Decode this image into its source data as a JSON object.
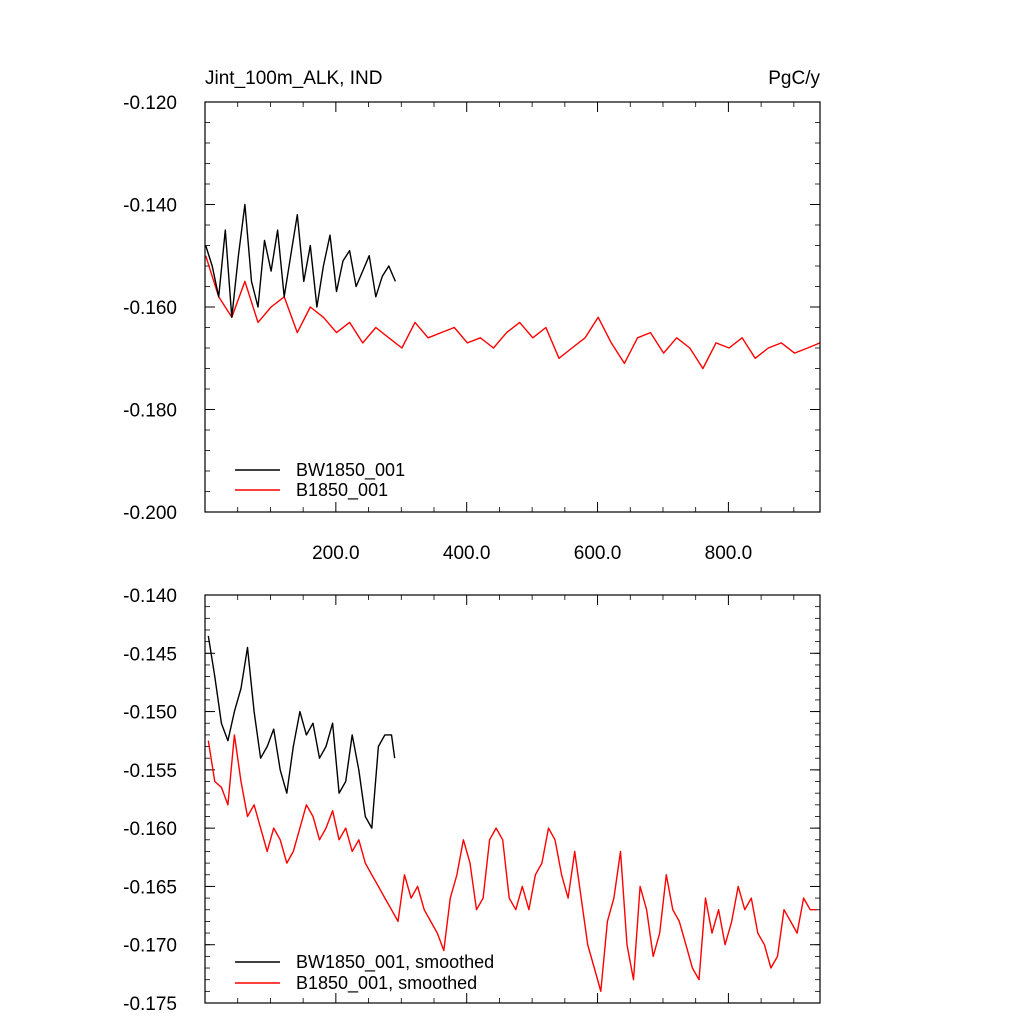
{
  "colors": {
    "series_a": "#000000",
    "series_b": "#ff0000",
    "axis": "#000000",
    "background": "#ffffff"
  },
  "chart_data": [
    {
      "type": "line",
      "title": "Jint_100m_ALK, IND",
      "units": "PgC/y",
      "xlabel": "",
      "ylabel": "",
      "xlim": [
        0,
        940
      ],
      "ylim": [
        -0.2,
        -0.12
      ],
      "yticks": [
        -0.2,
        -0.18,
        -0.16,
        -0.14,
        -0.12
      ],
      "ytick_labels": [
        "-0.200",
        "-0.180",
        "-0.160",
        "-0.140",
        "-0.120"
      ],
      "xticks": [
        200,
        400,
        600,
        800
      ],
      "xtick_labels": [
        "200.0",
        "400.0",
        "600.0",
        "800.0"
      ],
      "legend_position": "bottom-left",
      "series": [
        {
          "name": "BW1850_001",
          "color": "#000000",
          "x": [
            1,
            11,
            21,
            31,
            41,
            51,
            61,
            71,
            81,
            91,
            101,
            111,
            121,
            131,
            141,
            151,
            161,
            171,
            181,
            191,
            201,
            211,
            221,
            231,
            241,
            251,
            261,
            271,
            281,
            291
          ],
          "values": [
            -0.148,
            -0.152,
            -0.158,
            -0.145,
            -0.162,
            -0.15,
            -0.14,
            -0.155,
            -0.16,
            -0.147,
            -0.153,
            -0.145,
            -0.158,
            -0.15,
            -0.142,
            -0.155,
            -0.148,
            -0.16,
            -0.152,
            -0.146,
            -0.157,
            -0.151,
            -0.149,
            -0.156,
            -0.153,
            -0.15,
            -0.158,
            -0.154,
            -0.152,
            -0.155
          ]
        },
        {
          "name": "B1850_001",
          "color": "#ff0000",
          "x": [
            1,
            21,
            41,
            61,
            81,
            101,
            121,
            141,
            161,
            181,
            201,
            221,
            241,
            261,
            281,
            301,
            321,
            341,
            361,
            381,
            401,
            421,
            441,
            461,
            481,
            501,
            521,
            541,
            561,
            581,
            601,
            621,
            641,
            661,
            681,
            701,
            721,
            741,
            761,
            781,
            801,
            821,
            841,
            861,
            881,
            901,
            921,
            940
          ],
          "values": [
            -0.15,
            -0.158,
            -0.162,
            -0.155,
            -0.163,
            -0.16,
            -0.158,
            -0.165,
            -0.16,
            -0.162,
            -0.165,
            -0.163,
            -0.167,
            -0.164,
            -0.166,
            -0.168,
            -0.163,
            -0.166,
            -0.165,
            -0.164,
            -0.167,
            -0.166,
            -0.168,
            -0.165,
            -0.163,
            -0.166,
            -0.164,
            -0.17,
            -0.168,
            -0.166,
            -0.162,
            -0.167,
            -0.171,
            -0.166,
            -0.165,
            -0.169,
            -0.166,
            -0.168,
            -0.172,
            -0.167,
            -0.168,
            -0.166,
            -0.17,
            -0.168,
            -0.167,
            -0.169,
            -0.168,
            -0.167
          ]
        }
      ]
    },
    {
      "type": "line",
      "title": "",
      "xlabel": "",
      "ylabel": "",
      "xlim": [
        0,
        940
      ],
      "ylim": [
        -0.175,
        -0.14
      ],
      "yticks": [
        -0.175,
        -0.17,
        -0.165,
        -0.16,
        -0.155,
        -0.15,
        -0.145,
        -0.14
      ],
      "ytick_labels": [
        "-0.175",
        "-0.170",
        "-0.165",
        "-0.160",
        "-0.155",
        "-0.150",
        "-0.145",
        "-0.140"
      ],
      "xticks": [
        200,
        400,
        600,
        800
      ],
      "xtick_labels": [],
      "legend_position": "bottom-left",
      "series": [
        {
          "name": "BW1850_001, smoothed",
          "color": "#000000",
          "x": [
            5,
            15,
            25,
            35,
            45,
            55,
            65,
            75,
            85,
            95,
            105,
            115,
            125,
            135,
            145,
            155,
            165,
            175,
            185,
            195,
            205,
            215,
            225,
            235,
            245,
            255,
            265,
            275,
            285,
            290
          ],
          "values": [
            -0.1435,
            -0.147,
            -0.151,
            -0.1525,
            -0.15,
            -0.148,
            -0.1445,
            -0.15,
            -0.154,
            -0.153,
            -0.1515,
            -0.155,
            -0.157,
            -0.153,
            -0.15,
            -0.152,
            -0.151,
            -0.154,
            -0.153,
            -0.151,
            -0.157,
            -0.156,
            -0.152,
            -0.155,
            -0.159,
            -0.16,
            -0.153,
            -0.152,
            -0.152,
            -0.154
          ]
        },
        {
          "name": "B1850_001, smoothed",
          "color": "#ff0000",
          "x": [
            5,
            15,
            25,
            35,
            45,
            55,
            65,
            75,
            85,
            95,
            105,
            115,
            125,
            135,
            145,
            155,
            165,
            175,
            185,
            195,
            205,
            215,
            225,
            235,
            245,
            255,
            265,
            275,
            285,
            295,
            305,
            315,
            325,
            335,
            345,
            355,
            365,
            375,
            385,
            395,
            405,
            415,
            425,
            435,
            445,
            455,
            465,
            475,
            485,
            495,
            505,
            515,
            525,
            535,
            545,
            555,
            565,
            575,
            585,
            595,
            605,
            615,
            625,
            635,
            645,
            655,
            665,
            675,
            685,
            695,
            705,
            715,
            725,
            735,
            745,
            755,
            765,
            775,
            785,
            795,
            805,
            815,
            825,
            835,
            845,
            855,
            865,
            875,
            885,
            895,
            905,
            915,
            925,
            935
          ],
          "values": [
            -0.1525,
            -0.156,
            -0.1565,
            -0.158,
            -0.152,
            -0.156,
            -0.159,
            -0.158,
            -0.16,
            -0.162,
            -0.16,
            -0.161,
            -0.163,
            -0.162,
            -0.16,
            -0.158,
            -0.159,
            -0.161,
            -0.16,
            -0.1585,
            -0.161,
            -0.16,
            -0.162,
            -0.161,
            -0.163,
            -0.164,
            -0.165,
            -0.166,
            -0.167,
            -0.168,
            -0.164,
            -0.166,
            -0.165,
            -0.167,
            -0.168,
            -0.169,
            -0.1705,
            -0.166,
            -0.164,
            -0.161,
            -0.163,
            -0.167,
            -0.166,
            -0.161,
            -0.16,
            -0.161,
            -0.166,
            -0.167,
            -0.165,
            -0.167,
            -0.164,
            -0.163,
            -0.16,
            -0.161,
            -0.164,
            -0.166,
            -0.162,
            -0.166,
            -0.17,
            -0.172,
            -0.174,
            -0.168,
            -0.166,
            -0.162,
            -0.17,
            -0.173,
            -0.165,
            -0.167,
            -0.171,
            -0.169,
            -0.164,
            -0.167,
            -0.168,
            -0.17,
            -0.172,
            -0.173,
            -0.166,
            -0.169,
            -0.167,
            -0.17,
            -0.168,
            -0.165,
            -0.167,
            -0.166,
            -0.169,
            -0.17,
            -0.172,
            -0.171,
            -0.167,
            -0.168,
            -0.169,
            -0.166,
            -0.167,
            -0.167
          ]
        }
      ]
    }
  ]
}
